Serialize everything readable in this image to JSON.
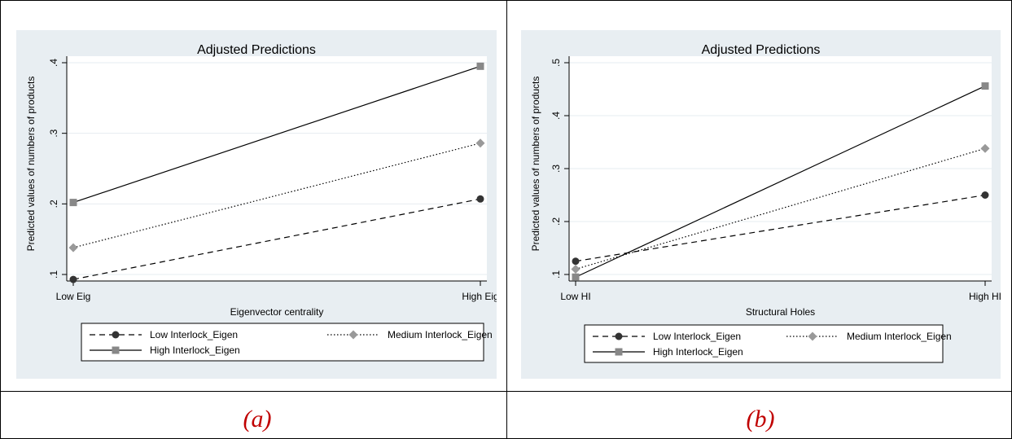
{
  "panels": [
    {
      "caption": "(a)",
      "title": "Adjusted Predictions",
      "xlabel": "Eigenvector centrality",
      "ylabel": "Predicted values of numbers of products",
      "categories": [
        "Low Eig",
        "High Eig"
      ],
      "yticks": [
        ".1",
        ".2",
        ".3",
        ".4"
      ],
      "legend": [
        {
          "label": "Low Interlock_Eigen",
          "style": "dashed",
          "marker": "circle"
        },
        {
          "label": "Medium Interlock_Eigen",
          "style": "dotted",
          "marker": "diamond"
        },
        {
          "label": "High Interlock_Eigen",
          "style": "solid",
          "marker": "square"
        }
      ]
    },
    {
      "caption": "(b)",
      "title": "Adjusted Predictions",
      "xlabel": "Structural Holes",
      "ylabel": "Predicted values of numbers of products",
      "categories": [
        "Low HI",
        "High HI"
      ],
      "yticks": [
        ".1",
        ".2",
        ".3",
        ".4",
        ".5"
      ],
      "legend": [
        {
          "label": "Low Interlock_Eigen",
          "style": "dashed",
          "marker": "circle"
        },
        {
          "label": "Medium Interlock_Eigen",
          "style": "dotted",
          "marker": "diamond"
        },
        {
          "label": "High Interlock_Eigen",
          "style": "solid",
          "marker": "square"
        }
      ]
    }
  ],
  "chart_data": [
    {
      "type": "line",
      "title": "Adjusted Predictions",
      "xlabel": "Eigenvector centrality",
      "ylabel": "Predicted values of numbers of products",
      "categories": [
        "Low Eig",
        "High Eig"
      ],
      "ylim": [
        0.1,
        0.4
      ],
      "grid": true,
      "legend_position": "bottom",
      "series": [
        {
          "name": "Low Interlock_Eigen",
          "values": [
            0.093,
            0.207
          ],
          "color": "#333333"
        },
        {
          "name": "Medium Interlock_Eigen",
          "values": [
            0.138,
            0.286
          ],
          "color": "#999999"
        },
        {
          "name": "High Interlock_Eigen",
          "values": [
            0.202,
            0.395
          ],
          "color": "#888888"
        }
      ]
    },
    {
      "type": "line",
      "title": "Adjusted Predictions",
      "xlabel": "Structural Holes",
      "ylabel": "Predicted values of numbers of products",
      "categories": [
        "Low HI",
        "High HI"
      ],
      "ylim": [
        0.1,
        0.5
      ],
      "grid": true,
      "legend_position": "bottom",
      "series": [
        {
          "name": "Low Interlock_Eigen",
          "values": [
            0.125,
            0.25
          ],
          "color": "#333333"
        },
        {
          "name": "Medium Interlock_Eigen",
          "values": [
            0.11,
            0.338
          ],
          "color": "#999999"
        },
        {
          "name": "High Interlock_Eigen",
          "values": [
            0.095,
            0.456
          ],
          "color": "#888888"
        }
      ]
    }
  ]
}
